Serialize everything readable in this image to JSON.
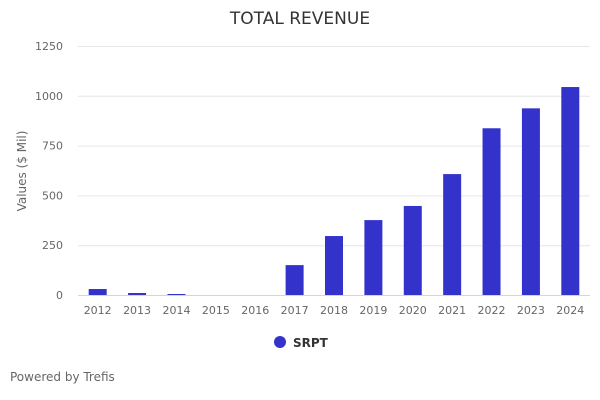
{
  "chart_data": {
    "type": "bar",
    "title": "TOTAL REVENUE",
    "xlabel": "",
    "ylabel": "Values ($ Mil)",
    "categories": [
      "2012",
      "2013",
      "2014",
      "2015",
      "2016",
      "2017",
      "2018",
      "2019",
      "2020",
      "2021",
      "2022",
      "2023",
      "2024"
    ],
    "series": [
      {
        "name": "SRPT",
        "color": "#3333cc",
        "values": [
          30,
          10,
          5,
          0,
          0,
          150,
          296,
          376,
          447,
          607,
          837,
          937,
          1044
        ]
      }
    ],
    "ylim": [
      0,
      1250
    ],
    "yticks": [
      "0",
      "250",
      "500",
      "750",
      "1000",
      "1250"
    ],
    "grid": true,
    "legend": "bottom-center"
  },
  "footer": {
    "credit": "Powered by Trefis"
  }
}
